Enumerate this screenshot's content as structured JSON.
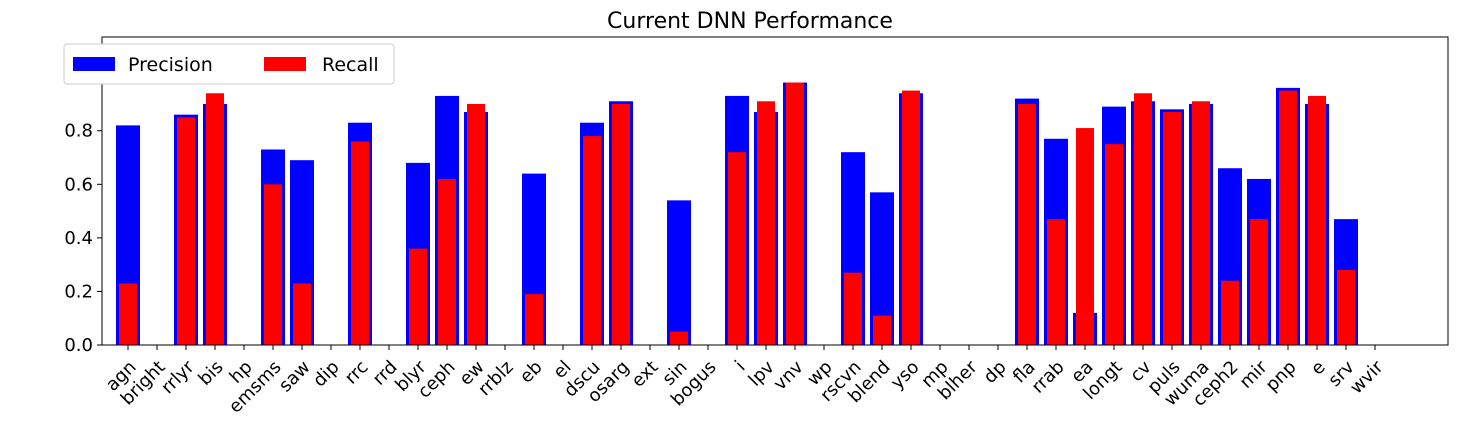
{
  "chart_data": {
    "type": "bar",
    "title": "Current DNN Performance",
    "xlabel": "",
    "ylabel": "",
    "ylim": [
      0,
      1.15
    ],
    "yticks": [
      "0.0",
      "0.2",
      "0.4",
      "0.6",
      "0.8",
      "1.0"
    ],
    "legend_position": "top-left",
    "categories": [
      "agn",
      "bright",
      "rrlyr",
      "bis",
      "hp",
      "emsms",
      "saw",
      "dip",
      "rrc",
      "rrd",
      "blyr",
      "ceph",
      "ew",
      "rrblz",
      "eb",
      "el",
      "dscu",
      "osarg",
      "ext",
      "sin",
      "bogus",
      "i",
      "lpv",
      "vnv",
      "wp",
      "rscvn",
      "blend",
      "yso",
      "mp",
      "blher",
      "dp",
      "fla",
      "rrab",
      "ea",
      "longt",
      "cv",
      "puls",
      "wuma",
      "ceph2",
      "mir",
      "pnp",
      "e",
      "srv",
      "wvir"
    ],
    "series": [
      {
        "name": "Precision",
        "color": "#0000ff",
        "values": [
          0.82,
          0,
          0.86,
          0.9,
          0,
          0.73,
          0.69,
          0,
          0.83,
          0,
          0.68,
          0.93,
          0.87,
          0,
          0.64,
          0,
          0.83,
          0.91,
          0,
          0.54,
          0,
          0.93,
          0.87,
          0.98,
          0,
          0.72,
          0.57,
          0.94,
          0,
          0,
          0,
          0.92,
          0.77,
          0.12,
          0.89,
          0.91,
          0.88,
          0.9,
          0.66,
          0.62,
          0.96,
          0.9,
          0.47,
          0
        ]
      },
      {
        "name": "Recall",
        "color": "#ff0000",
        "values": [
          0.23,
          0,
          0.85,
          0.94,
          0,
          0.6,
          0.23,
          0,
          0.76,
          0,
          0.36,
          0.62,
          0.9,
          0,
          0.19,
          0,
          0.78,
          0.9,
          0,
          0.05,
          0,
          0.72,
          0.91,
          0.98,
          0,
          0.27,
          0.11,
          0.95,
          0,
          0,
          0,
          0.9,
          0.47,
          0.81,
          0.75,
          0.94,
          0.87,
          0.91,
          0.24,
          0.47,
          0.95,
          0.93,
          0.28,
          0
        ]
      }
    ]
  }
}
